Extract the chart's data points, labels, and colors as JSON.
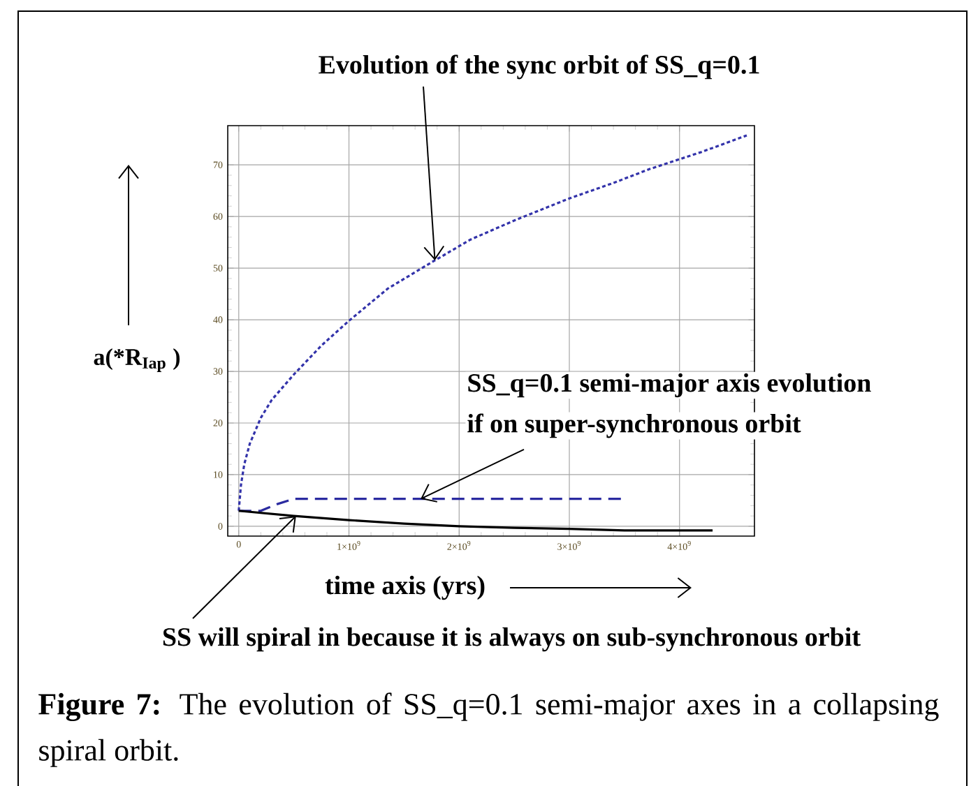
{
  "chart_data": {
    "type": "line",
    "xlabel": "time axis (yrs)",
    "ylabel": "a(*R$_{Iap}$ )",
    "xlim": [
      -100000000.0,
      4680000000.0
    ],
    "ylim": [
      -1.9,
      77.6
    ],
    "xticks": [
      0,
      {
        "value": 1000000000.0,
        "label": "1×10$^{9}$"
      },
      {
        "value": 2000000000.0,
        "label": "2×10$^{9}$"
      },
      {
        "value": 3000000000.0,
        "label": "3×10$^{9}$"
      },
      {
        "value": 4000000000.0,
        "label": "4×10$^{9}$"
      }
    ],
    "yticks": [
      0,
      10,
      20,
      30,
      40,
      50,
      60,
      70
    ],
    "grid": true,
    "series": [
      {
        "line_style": "dotted",
        "color": "#3333aa",
        "x": [
          0,
          20000000.0,
          50000000.0,
          100000000.0,
          200000000.0,
          300000000.0,
          500000000.0,
          750000000.0,
          1000000000.0,
          1350000000.0,
          1740000000.0,
          2100000000.0,
          2520000000.0,
          3000000000.0,
          3400000000.0,
          3730000000.0,
          4200000000.0,
          4610000000.0
        ],
        "values": [
          3,
          8,
          12,
          16,
          21,
          24.5,
          29.4,
          35,
          39.8,
          46,
          51,
          55.5,
          59.4,
          63.5,
          66.5,
          69.2,
          72.5,
          75.7
        ]
      },
      {
        "line_style": "dashed",
        "color": "#2b2ba0",
        "x": [
          0,
          200000000.0,
          350000000.0,
          500000000.0,
          1000000000.0,
          3500000000.0
        ],
        "values": [
          3,
          3,
          4.3,
          5.3,
          5.3,
          5.3
        ]
      },
      {
        "line_style": "solid",
        "color": "#000000",
        "x": [
          0,
          500000000.0,
          1000000000.0,
          1500000000.0,
          2000000000.0,
          2500000000.0,
          3000000000.0,
          3500000000.0,
          4300000000.0
        ],
        "values": [
          3,
          2,
          1.2,
          0.5,
          0,
          -0.3,
          -0.5,
          -0.8,
          -0.8
        ]
      }
    ],
    "annotations": [
      {
        "text": "Evolution of the sync orbit of SS_q=0.1",
        "x": 1780000000.0,
        "y": 51.5
      },
      "SS_q=0.1 semi-major axis evolution",
      {
        "text": "if on super-synchronous orbit",
        "x": 1650000000.0,
        "y": 5.3
      },
      {
        "text": "SS will spiral in because it is always on sub-synchronous orbit",
        "x": 520000000.0,
        "y": 2.0
      },
      "**Figure 7:** The evolution of SS_q=0.1 semi-major axes in a collapsing spiral orbit."
    ]
  }
}
